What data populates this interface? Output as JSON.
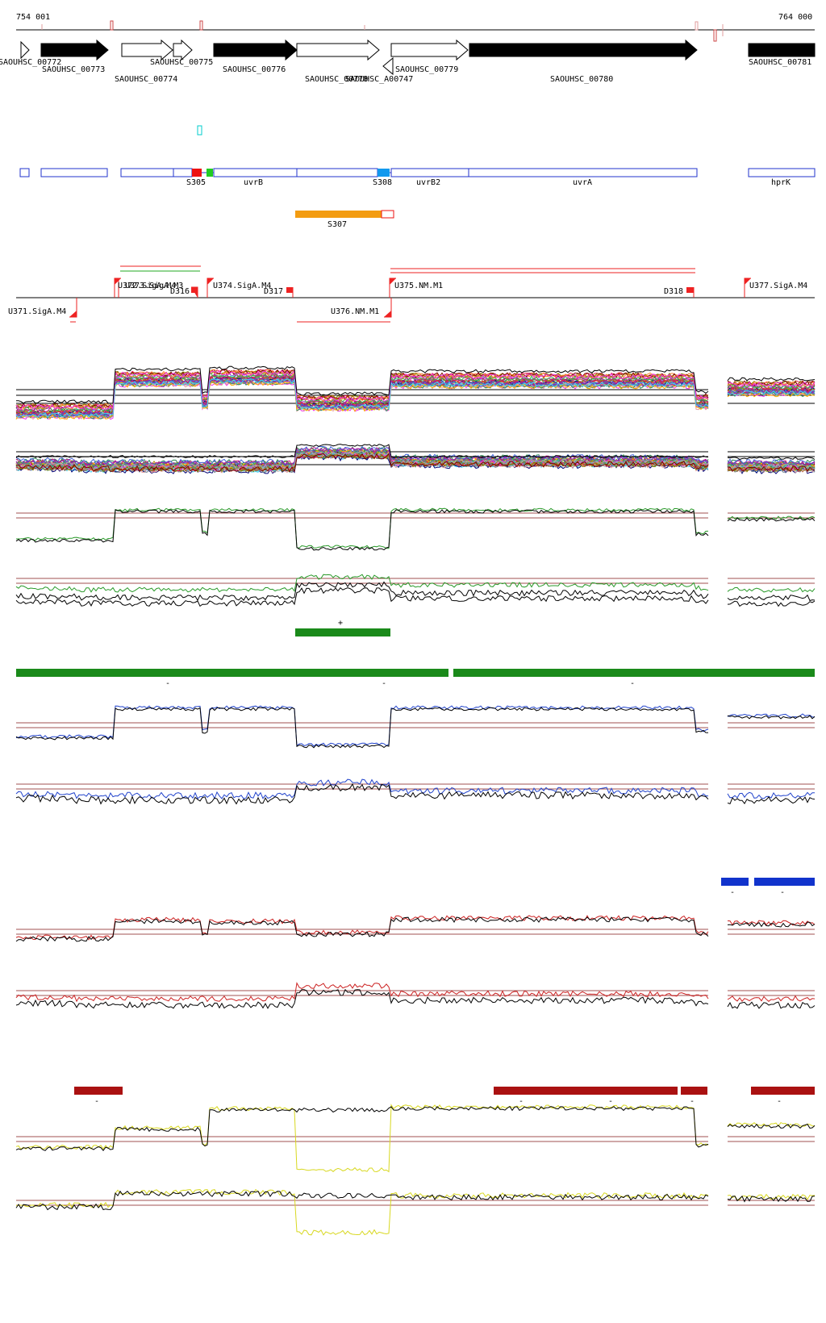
{
  "coordinates": {
    "start": "754 001",
    "end": "764 000"
  },
  "colors": {
    "axis": "#000000",
    "feature_blue": "#2233cc",
    "marker_red": "#ee1111",
    "marker_green": "#22cc22",
    "marker_sky": "#1199ee",
    "orange": "#f39c12",
    "promoter_red": "#ee2222",
    "green_bar": "#1a8a1a",
    "blue_bar": "#1133cc",
    "darkred_bar": "#aa1111",
    "trace_green": "#2a9a2a",
    "trace_blue": "#2244cc",
    "trace_red": "#cc2222",
    "trace_yellow": "#d8d820",
    "threshold": "#a05050",
    "cyan": "#00cccc"
  },
  "genes": [
    {
      "label": "SAOUHSC_00772",
      "strand": "+",
      "filled": false
    },
    {
      "label": "SAOUHSC_00773",
      "strand": "+",
      "filled": true
    },
    {
      "label": "SAOUHSC_00774",
      "strand": "+",
      "filled": false
    },
    {
      "label": "SAOUHSC_00775",
      "strand": "+",
      "filled": false
    },
    {
      "label": "SAOUHSC_00776",
      "strand": "+",
      "filled": true
    },
    {
      "label": "SAOUHSC_00778",
      "strand": "+",
      "filled": false
    },
    {
      "label": "SAOUHSC_A00747",
      "strand": "-",
      "filled": false
    },
    {
      "label": "SAOUHSC_00779",
      "strand": "+",
      "filled": false
    },
    {
      "label": "SAOUHSC_00780",
      "strand": "+",
      "filled": true
    },
    {
      "label": "SAOUHSC_00781",
      "strand": "+",
      "filled": true
    }
  ],
  "annotations": [
    {
      "label": "S305"
    },
    {
      "label": "uvrB"
    },
    {
      "label": "S308"
    },
    {
      "label": "uvrB2"
    },
    {
      "label": "uvrA"
    },
    {
      "label": "hprK"
    }
  ],
  "orange_feature": {
    "label": "S307"
  },
  "promoters": [
    {
      "label": "U371.SigA.M4",
      "strand": "-"
    },
    {
      "label": "U372.SigA.M4",
      "strand": "+"
    },
    {
      "label": "U373.SigA.M3",
      "strand": "+"
    },
    {
      "label": "D316",
      "strand": "+"
    },
    {
      "label": "U374.SigA.M4",
      "strand": "+"
    },
    {
      "label": "D317",
      "strand": "+"
    },
    {
      "label": "U375.NM.M1",
      "strand": "+"
    },
    {
      "label": "U376.NM.M1",
      "strand": "-"
    },
    {
      "label": "D318",
      "strand": "+"
    },
    {
      "label": "U377.SigA.M4",
      "strand": "+"
    }
  ],
  "segment_marks": {
    "green_plus": "+",
    "green_minus": [
      "-",
      "-",
      "-"
    ],
    "blue_minus": [
      "-",
      "-"
    ],
    "red_minus": [
      "-",
      "-",
      "-",
      "-",
      "-"
    ]
  }
}
